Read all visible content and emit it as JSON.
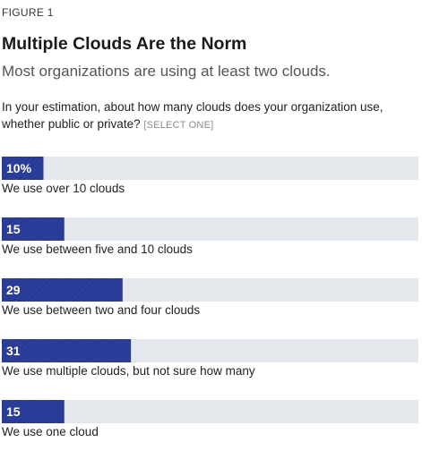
{
  "figure_label": "FIGURE 1",
  "title": "Multiple Clouds Are the Norm",
  "subtitle": "Most organizations are using at least two clouds.",
  "question": "In your estimation, about how many clouds does your organization use, whether public or private?",
  "question_note": "[SELECT ONE]",
  "colors": {
    "bar": "#2c3e9c",
    "bar_hatch": "#233381",
    "track": "#e4e7ec"
  },
  "chart_data": {
    "type": "bar",
    "orientation": "horizontal",
    "categories": [
      "We use over 10 clouds",
      "We use between five and 10 clouds",
      "We use between two and four clouds",
      "We use multiple clouds, but not sure how many",
      "We use one cloud"
    ],
    "values": [
      10,
      15,
      29,
      31,
      15
    ],
    "data_labels": [
      "10%",
      "15",
      "29",
      "31",
      "15"
    ],
    "xlim": [
      0,
      100
    ],
    "grid": false
  }
}
